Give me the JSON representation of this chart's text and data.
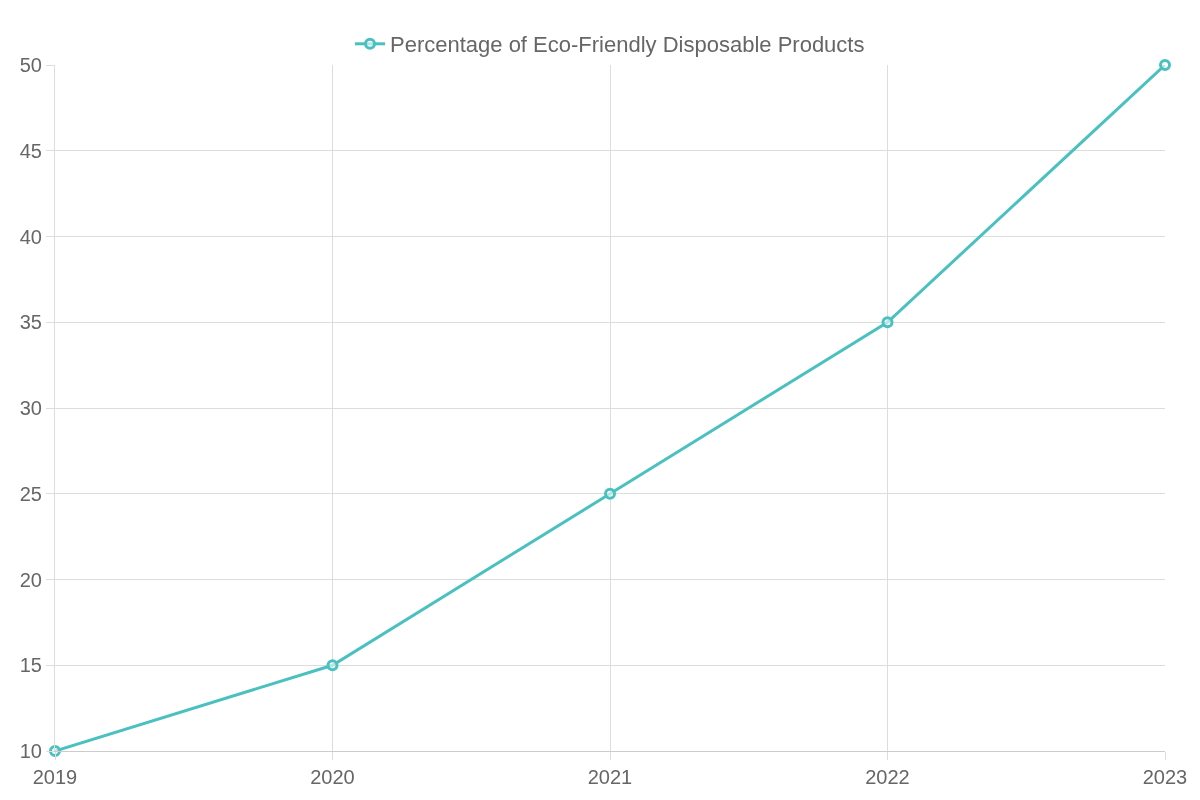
{
  "chart_data": {
    "type": "line",
    "categories": [
      "2019",
      "2020",
      "2021",
      "2022",
      "2023"
    ],
    "series": [
      {
        "name": "Percentage of Eco-Friendly Disposable Products",
        "color": "#4bc0c0",
        "values": [
          10,
          15,
          25,
          35,
          50
        ]
      }
    ],
    "ylim": [
      10,
      50
    ],
    "yticks": [
      10,
      15,
      20,
      25,
      30,
      35,
      40,
      45,
      50
    ],
    "grid": true,
    "legend": "top",
    "marker": "circle",
    "line_style": "solid"
  }
}
